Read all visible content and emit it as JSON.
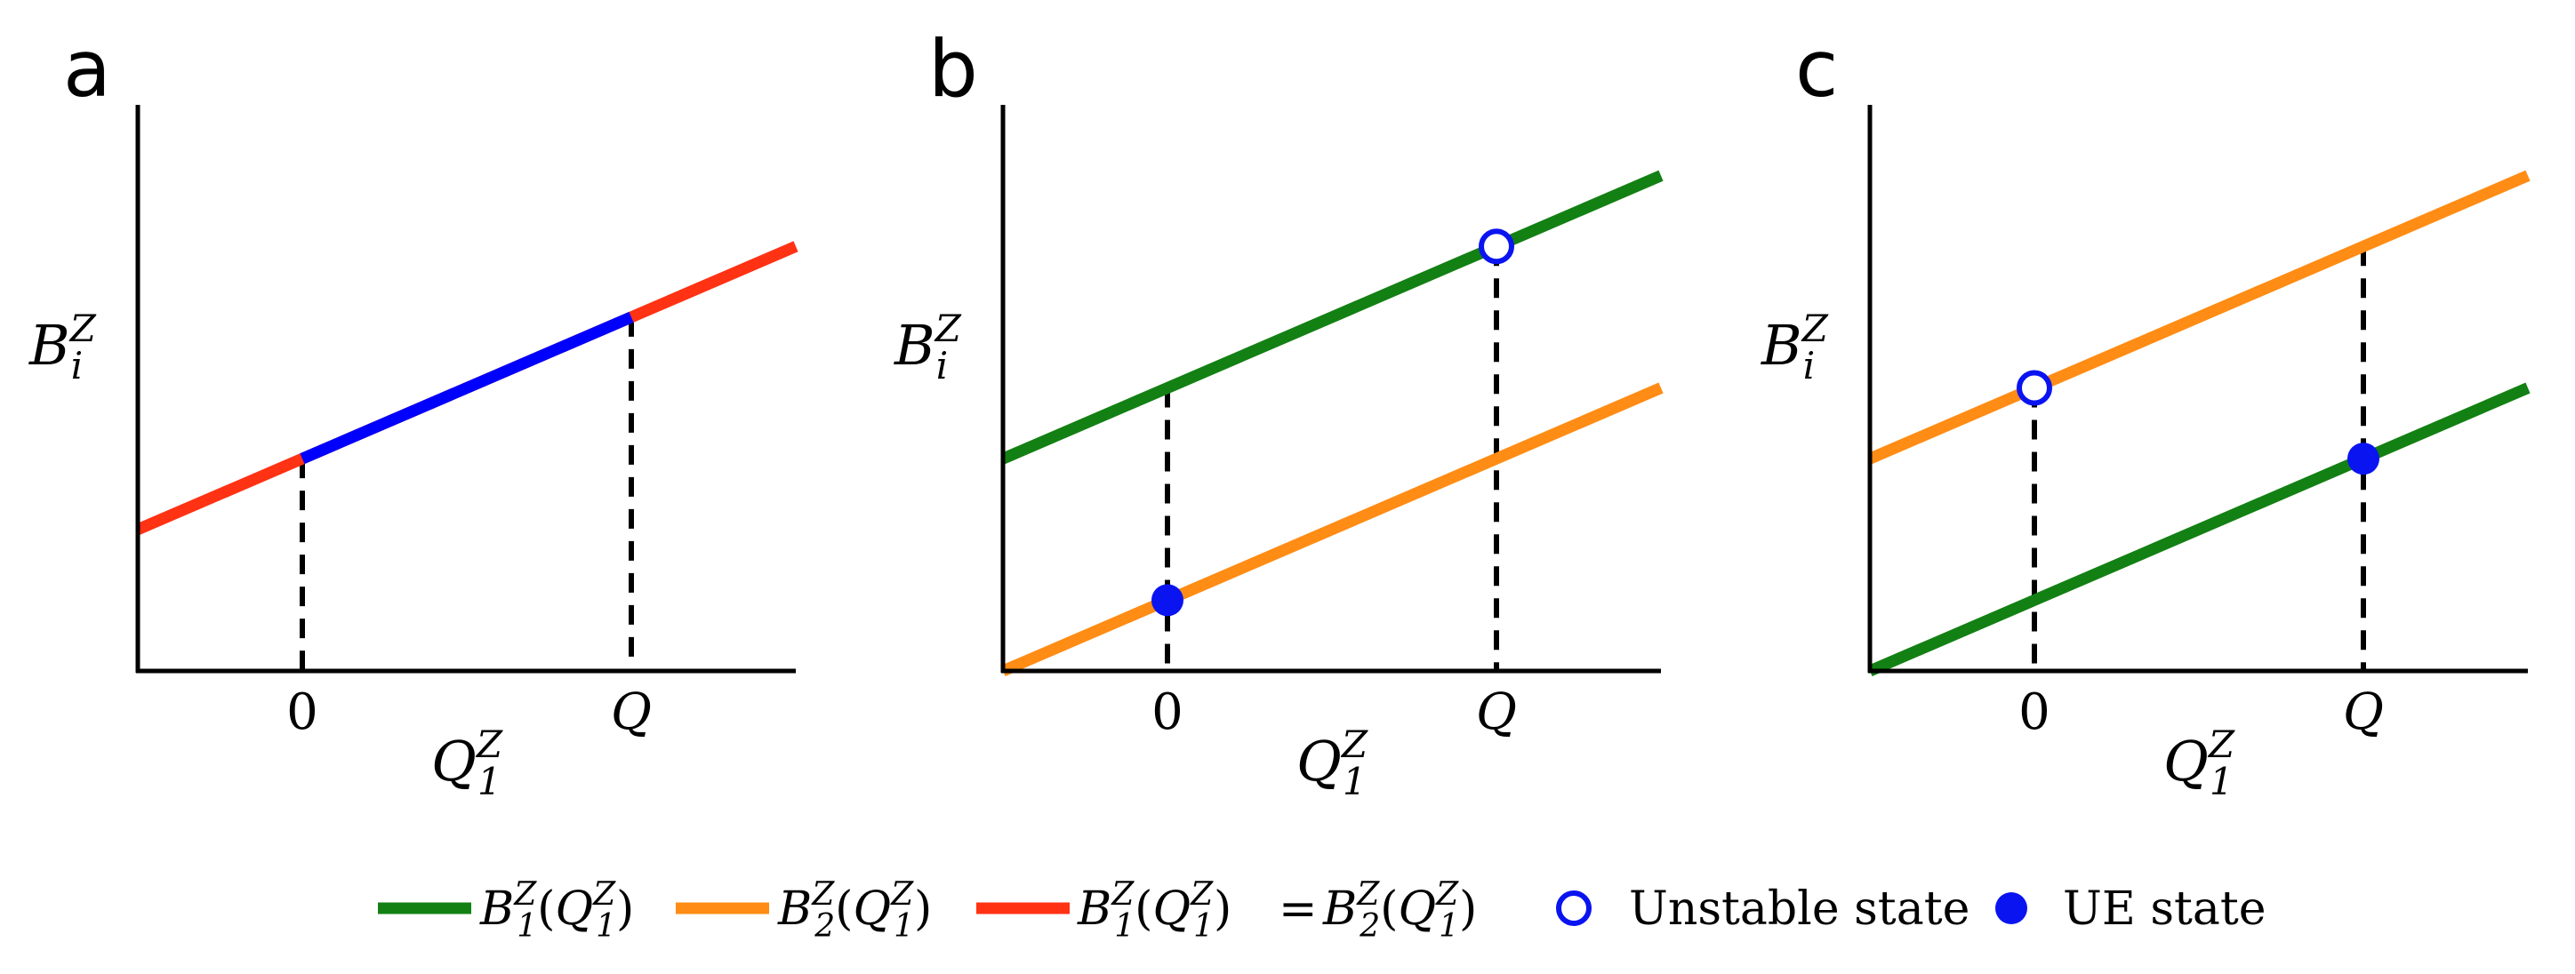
{
  "colors": {
    "b1": "#138013",
    "b2": "#ff8c14",
    "equal": "#ff3214",
    "ue_segment": "#0000ff",
    "marker": "#0a14f0",
    "axis": "#000000"
  },
  "chart_data": [
    {
      "panel": "a",
      "type": "line",
      "xlabel": {
        "base": "Q",
        "sup": "Z",
        "sub": "1"
      },
      "ylabel": {
        "base": "B",
        "sup": "Z",
        "sub": "i"
      },
      "xticks": [
        {
          "x": 0,
          "label": "0",
          "italic": false
        },
        {
          "x": 1,
          "label": "Q",
          "italic": true
        }
      ],
      "xlim": [
        -0.5,
        1.5
      ],
      "ylim": [
        0,
        1.6
      ],
      "series": [
        {
          "key": "equal",
          "color_key": "equal",
          "x": [
            -0.5,
            1.5
          ],
          "y": [
            0.4,
            1.2
          ]
        }
      ],
      "highlight_segment": {
        "color_key": "ue_segment",
        "x": [
          0,
          1
        ],
        "y": [
          0.6,
          1.0
        ]
      },
      "guides": [
        {
          "x": 0,
          "y": 0.6
        },
        {
          "x": 1,
          "y": 1.0
        }
      ],
      "markers": []
    },
    {
      "panel": "b",
      "type": "line",
      "xlabel": {
        "base": "Q",
        "sup": "Z",
        "sub": "1"
      },
      "ylabel": {
        "base": "B",
        "sup": "Z",
        "sub": "i"
      },
      "xticks": [
        {
          "x": 0,
          "label": "0",
          "italic": false
        },
        {
          "x": 1,
          "label": "Q",
          "italic": true
        }
      ],
      "xlim": [
        -0.5,
        1.5
      ],
      "ylim": [
        0,
        1.6
      ],
      "series": [
        {
          "key": "b1",
          "color_key": "b1",
          "x": [
            -0.5,
            1.5
          ],
          "y": [
            0.6,
            1.4
          ]
        },
        {
          "key": "b2",
          "color_key": "b2",
          "x": [
            -0.5,
            1.5
          ],
          "y": [
            0.0,
            0.8
          ]
        }
      ],
      "guides": [
        {
          "x": 0,
          "y": 0.8
        },
        {
          "x": 1,
          "y": 1.2
        }
      ],
      "markers": [
        {
          "type": "unstable",
          "x": 1,
          "y": 1.2
        },
        {
          "type": "ue",
          "x": 0,
          "y": 0.2
        }
      ]
    },
    {
      "panel": "c",
      "type": "line",
      "xlabel": {
        "base": "Q",
        "sup": "Z",
        "sub": "1"
      },
      "ylabel": {
        "base": "B",
        "sup": "Z",
        "sub": "i"
      },
      "xticks": [
        {
          "x": 0,
          "label": "0",
          "italic": false
        },
        {
          "x": 1,
          "label": "Q",
          "italic": true
        }
      ],
      "xlim": [
        -0.5,
        1.5
      ],
      "ylim": [
        0,
        1.6
      ],
      "series": [
        {
          "key": "b2",
          "color_key": "b2",
          "x": [
            -0.5,
            1.5
          ],
          "y": [
            0.6,
            1.4
          ]
        },
        {
          "key": "b1",
          "color_key": "b1",
          "x": [
            -0.5,
            1.5
          ],
          "y": [
            0.0,
            0.8
          ]
        }
      ],
      "guides": [
        {
          "x": 0,
          "y": 0.8
        },
        {
          "x": 1,
          "y": 1.2
        }
      ],
      "markers": [
        {
          "type": "unstable",
          "x": 0,
          "y": 0.8
        },
        {
          "type": "ue",
          "x": 1,
          "y": 0.6
        }
      ]
    }
  ],
  "legend": {
    "b1": {
      "fn": "B",
      "fn_sup": "Z",
      "fn_sub": "1",
      "arg": "Q",
      "arg_sup": "Z",
      "arg_sub": "1"
    },
    "b2": {
      "fn": "B",
      "fn_sup": "Z",
      "fn_sub": "2",
      "arg": "Q",
      "arg_sup": "Z",
      "arg_sub": "1"
    },
    "equal_left": {
      "fn": "B",
      "fn_sup": "Z",
      "fn_sub": "1",
      "arg": "Q",
      "arg_sup": "Z",
      "arg_sub": "1"
    },
    "equal_sign": "=",
    "equal_right": {
      "fn": "B",
      "fn_sup": "Z",
      "fn_sub": "2",
      "arg": "Q",
      "arg_sup": "Z",
      "arg_sub": "1"
    },
    "unstable_label": "Unstable state",
    "ue_label": "UE state"
  }
}
